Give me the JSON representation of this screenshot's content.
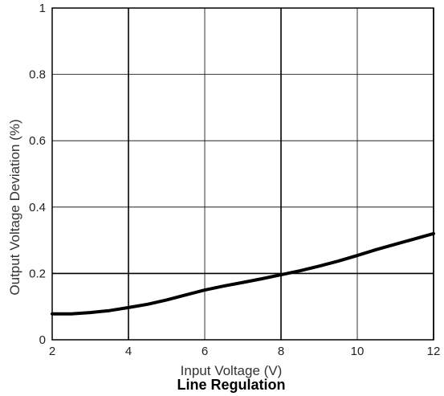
{
  "chart_data": {
    "type": "line",
    "title": "Line Regulation",
    "xlabel": "Input Voltage (V)",
    "ylabel": "Output Voltage Deviation (%)",
    "xlim": [
      2,
      12
    ],
    "ylim": [
      0,
      1
    ],
    "xticks": [
      "2",
      "4",
      "6",
      "8",
      "10",
      "12"
    ],
    "yticks": [
      "0",
      "0.2",
      "0.4",
      "0.6",
      "0.8",
      "1"
    ],
    "grid": true,
    "series": [
      {
        "x": [
          2,
          2.5,
          3,
          3.5,
          4,
          4.5,
          5,
          5.5,
          6,
          6.5,
          7,
          7.5,
          8,
          8.5,
          9,
          9.5,
          10,
          10.5,
          11,
          11.5,
          12
        ],
        "values": [
          0.078,
          0.078,
          0.082,
          0.088,
          0.097,
          0.107,
          0.12,
          0.135,
          0.15,
          0.162,
          0.173,
          0.184,
          0.196,
          0.208,
          0.222,
          0.237,
          0.254,
          0.272,
          0.288,
          0.304,
          0.32
        ]
      }
    ]
  },
  "colors": {
    "line": "#000000",
    "grid": "#000000",
    "background": "#ffffff"
  }
}
